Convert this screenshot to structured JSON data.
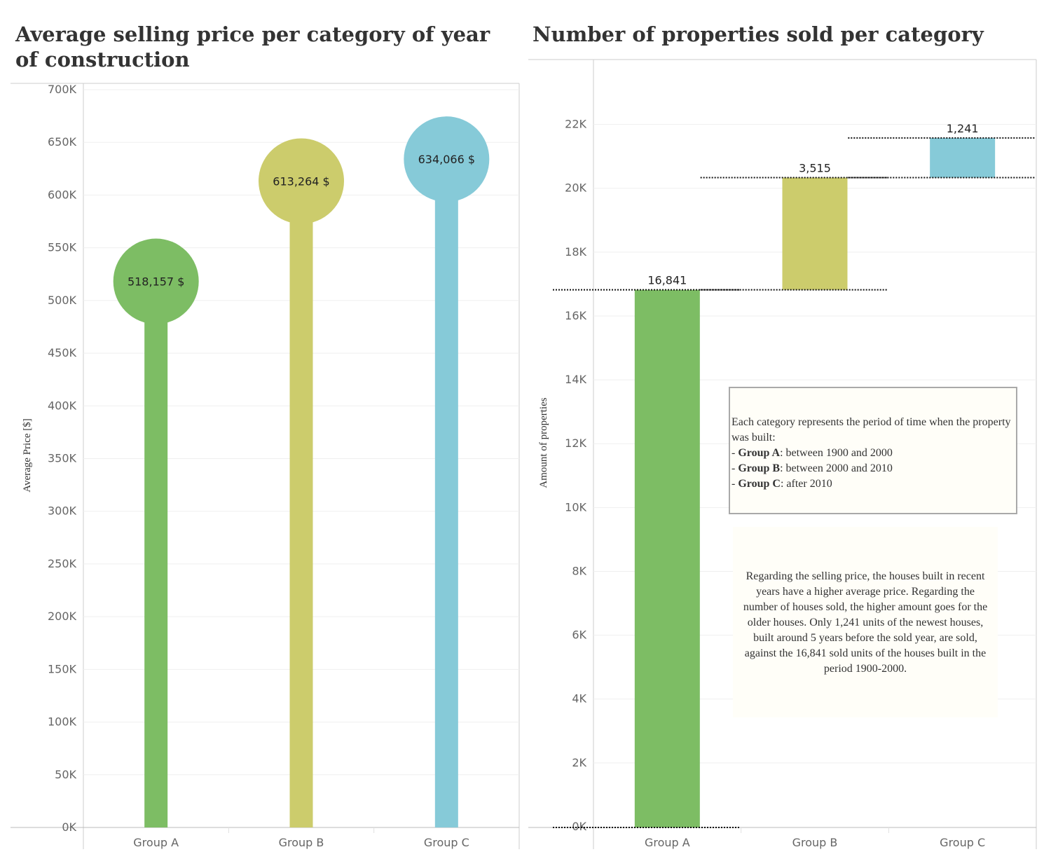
{
  "left_chart": {
    "title": "Average selling price per category of year of construction"
  },
  "right_chart": {
    "title": "Number of properties sold per category"
  },
  "notes": {
    "categories_intro": "Each category represents the period of time when the property was built:",
    "categories": [
      {
        "prefix": "- ",
        "name": "Group A",
        "text": ": between 1900 and 2000"
      },
      {
        "prefix": "- ",
        "name": "Group B",
        "text": ": between 2000 and 2010"
      },
      {
        "prefix": "- ",
        "name": "Group C",
        "text": ": after 2010"
      }
    ],
    "conclusion": "Regarding the selling price, the houses built in recent years have a higher average price. Regarding the number of houses sold, the higher amount goes for the older houses. Only 1,241 units of the newest houses, built around 5 years before the sold year, are sold, against the 16,841 sold units of the houses built in the period 1900-2000."
  },
  "chart_data": [
    {
      "type": "bar",
      "style": "lollipop",
      "title": "Average selling price per category of year of construction",
      "categories": [
        "Group A",
        "Group B",
        "Group C"
      ],
      "values": [
        518157,
        613264,
        634066
      ],
      "data_labels": [
        "518,157 $",
        "613,264 $",
        "634,066 $"
      ],
      "colors": [
        "#7dbd64",
        "#cccc6c",
        "#86cad8"
      ],
      "ylabel": "Average Price [$]",
      "ylim": [
        0,
        700000
      ],
      "yticks": [
        0,
        50000,
        100000,
        150000,
        200000,
        250000,
        300000,
        350000,
        400000,
        450000,
        500000,
        550000,
        600000,
        650000,
        700000
      ],
      "ytick_labels": [
        "0K",
        "50K",
        "100K",
        "150K",
        "200K",
        "250K",
        "300K",
        "350K",
        "400K",
        "450K",
        "500K",
        "550K",
        "600K",
        "650K",
        "700K"
      ],
      "grid": true
    },
    {
      "type": "bar",
      "style": "waterfall",
      "title": "Number of properties sold per category",
      "categories": [
        "Group A",
        "Group B",
        "Group C"
      ],
      "values": [
        16841,
        3515,
        1241
      ],
      "cumulative": [
        16841,
        20356,
        21597
      ],
      "data_labels": [
        "16,841",
        "3,515",
        "1,241"
      ],
      "colors": [
        "#7dbd64",
        "#cccc6c",
        "#86cad8"
      ],
      "ylabel": "Amount of properties",
      "ylim": [
        0,
        23000
      ],
      "yticks": [
        0,
        2000,
        4000,
        6000,
        8000,
        10000,
        12000,
        14000,
        16000,
        18000,
        20000,
        22000
      ],
      "ytick_labels": [
        "0K",
        "2K",
        "4K",
        "6K",
        "8K",
        "10K",
        "12K",
        "14K",
        "16K",
        "18K",
        "20K",
        "22K"
      ],
      "grid": true
    }
  ]
}
